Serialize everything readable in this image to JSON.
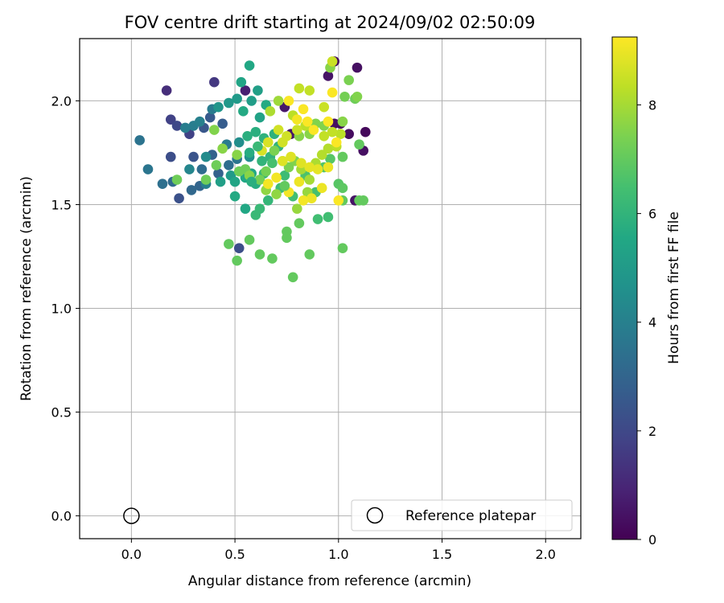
{
  "chart_data": {
    "type": "scatter",
    "title": "FOV centre drift starting at 2024/09/02 02:50:09",
    "xlabel": "Angular distance from reference (arcmin)",
    "ylabel": "Rotation from reference (arcmin)",
    "colorbar_label": "Hours from first FF file",
    "xlim": [
      -0.25,
      2.17
    ],
    "ylim": [
      -0.11,
      2.3
    ],
    "clim": [
      0,
      9.25
    ],
    "xticks": [
      0.0,
      0.5,
      1.0,
      1.5,
      2.0
    ],
    "yticks": [
      0.0,
      0.5,
      1.0,
      1.5,
      2.0
    ],
    "colorbar_ticks": [
      0,
      2,
      4,
      6,
      8
    ],
    "grid": true,
    "colormap": "viridis",
    "legend": {
      "position": "lower-right",
      "entries": [
        {
          "label": "Reference platepar",
          "marker": "open-circle"
        }
      ]
    },
    "reference_point": {
      "x": 0.0,
      "y": 0.0
    },
    "points": [
      [
        0.98,
        2.19,
        0.3
      ],
      [
        1.09,
        2.16,
        0.4
      ],
      [
        0.95,
        2.12,
        0.5
      ],
      [
        1.01,
        1.89,
        0.2
      ],
      [
        1.05,
        1.84,
        0.3
      ],
      [
        1.13,
        1.85,
        0.2
      ],
      [
        1.12,
        1.76,
        0.4
      ],
      [
        1.08,
        1.52,
        0.5
      ],
      [
        0.74,
        1.97,
        0.6
      ],
      [
        0.55,
        2.05,
        0.8
      ],
      [
        0.77,
        1.84,
        0.5
      ],
      [
        0.98,
        1.89,
        0.4
      ],
      [
        0.17,
        2.05,
        1.2
      ],
      [
        0.4,
        2.09,
        1.5
      ],
      [
        0.19,
        1.91,
        1.8
      ],
      [
        0.22,
        1.88,
        2.0
      ],
      [
        0.28,
        1.84,
        1.8
      ],
      [
        0.19,
        1.73,
        2.2
      ],
      [
        0.3,
        1.73,
        2.4
      ],
      [
        0.23,
        1.53,
        2.3
      ],
      [
        0.52,
        1.29,
        2.2
      ],
      [
        0.35,
        1.87,
        2.5
      ],
      [
        0.38,
        1.92,
        2.6
      ],
      [
        0.44,
        1.89,
        2.7
      ],
      [
        0.39,
        1.74,
        2.9
      ],
      [
        0.42,
        1.65,
        2.9
      ],
      [
        0.33,
        1.59,
        3.0
      ],
      [
        0.29,
        1.57,
        3.1
      ],
      [
        0.04,
        1.81,
        3.5
      ],
      [
        0.08,
        1.67,
        3.6
      ],
      [
        0.15,
        1.6,
        3.4
      ],
      [
        0.2,
        1.61,
        3.2
      ],
      [
        0.34,
        1.67,
        3.3
      ],
      [
        0.47,
        1.69,
        3.3
      ],
      [
        0.51,
        1.72,
        3.6
      ],
      [
        0.46,
        1.79,
        3.8
      ],
      [
        0.39,
        1.96,
        3.8
      ],
      [
        0.3,
        1.88,
        3.9
      ],
      [
        0.26,
        1.87,
        3.9
      ],
      [
        0.33,
        1.9,
        4.0
      ],
      [
        0.36,
        1.6,
        4.0
      ],
      [
        0.28,
        1.67,
        4.2
      ],
      [
        0.36,
        1.73,
        4.4
      ],
      [
        0.52,
        1.8,
        4.5
      ],
      [
        0.57,
        1.73,
        4.6
      ],
      [
        0.42,
        1.97,
        4.8
      ],
      [
        0.47,
        1.99,
        4.9
      ],
      [
        0.51,
        2.01,
        5.0
      ],
      [
        0.58,
        2.0,
        5.1
      ],
      [
        0.62,
        1.92,
        5.3
      ],
      [
        0.61,
        2.05,
        5.2
      ],
      [
        0.53,
        2.09,
        5.4
      ],
      [
        0.57,
        2.17,
        5.5
      ],
      [
        0.54,
        1.95,
        5.6
      ],
      [
        0.65,
        1.98,
        5.6
      ],
      [
        0.48,
        1.64,
        5.0
      ],
      [
        0.43,
        1.61,
        5.2
      ],
      [
        0.5,
        1.61,
        5.4
      ],
      [
        0.55,
        1.63,
        5.5
      ],
      [
        0.58,
        1.65,
        5.5
      ],
      [
        0.5,
        1.54,
        5.6
      ],
      [
        0.55,
        1.48,
        5.5
      ],
      [
        0.6,
        1.6,
        5.7
      ],
      [
        0.57,
        1.75,
        5.7
      ],
      [
        0.56,
        1.83,
        5.8
      ],
      [
        0.6,
        1.85,
        5.8
      ],
      [
        0.64,
        1.82,
        5.9
      ],
      [
        0.69,
        1.84,
        5.9
      ],
      [
        0.71,
        1.78,
        6.0
      ],
      [
        0.67,
        1.73,
        6.0
      ],
      [
        0.64,
        1.65,
        6.1
      ],
      [
        0.66,
        1.52,
        6.1
      ],
      [
        0.62,
        1.48,
        6.2
      ],
      [
        0.6,
        1.45,
        6.2
      ],
      [
        0.72,
        1.58,
        6.3
      ],
      [
        0.74,
        1.64,
        6.3
      ],
      [
        0.78,
        1.54,
        6.4
      ],
      [
        0.9,
        1.43,
        6.4
      ],
      [
        0.95,
        1.44,
        6.4
      ],
      [
        0.89,
        1.56,
        6.5
      ],
      [
        0.84,
        1.64,
        6.6
      ],
      [
        0.93,
        1.68,
        6.7
      ],
      [
        0.96,
        1.72,
        6.8
      ],
      [
        1.0,
        1.6,
        6.8
      ],
      [
        1.02,
        1.58,
        6.9
      ],
      [
        0.86,
        1.26,
        7.0
      ],
      [
        0.81,
        1.41,
        7.0
      ],
      [
        0.75,
        1.37,
        7.0
      ],
      [
        0.75,
        1.34,
        7.0
      ],
      [
        0.78,
        1.15,
        7.0
      ],
      [
        0.68,
        1.24,
        7.0
      ],
      [
        0.62,
        1.26,
        7.0
      ],
      [
        0.57,
        1.33,
        7.0
      ],
      [
        0.47,
        1.31,
        7.0
      ],
      [
        0.51,
        1.23,
        7.0
      ],
      [
        1.02,
        1.29,
        7.0
      ],
      [
        1.02,
        1.52,
        7.0
      ],
      [
        1.1,
        1.52,
        7.0
      ],
      [
        1.12,
        1.52,
        7.0
      ],
      [
        1.1,
        1.79,
        7.0
      ],
      [
        1.02,
        1.73,
        7.0
      ],
      [
        1.08,
        2.01,
        7.2
      ],
      [
        1.03,
        2.02,
        7.3
      ],
      [
        1.05,
        2.1,
        7.4
      ],
      [
        1.09,
        2.02,
        7.5
      ],
      [
        0.96,
        2.16,
        7.6
      ],
      [
        1.02,
        1.9,
        7.6
      ],
      [
        0.93,
        1.88,
        7.5
      ],
      [
        0.89,
        1.89,
        7.5
      ],
      [
        0.86,
        1.84,
        7.6
      ],
      [
        0.81,
        1.83,
        7.6
      ],
      [
        0.79,
        1.71,
        7.5
      ],
      [
        0.76,
        1.68,
        7.4
      ],
      [
        0.73,
        1.71,
        7.4
      ],
      [
        0.69,
        1.76,
        7.4
      ],
      [
        0.65,
        1.66,
        7.3
      ],
      [
        0.62,
        1.62,
        7.3
      ],
      [
        0.55,
        1.67,
        7.2
      ],
      [
        0.52,
        1.66,
        7.2
      ],
      [
        0.41,
        1.69,
        7.2
      ],
      [
        0.36,
        1.62,
        7.2
      ],
      [
        0.22,
        1.62,
        7.2
      ],
      [
        0.4,
        1.86,
        7.5
      ],
      [
        0.44,
        1.77,
        7.6
      ],
      [
        0.51,
        1.74,
        7.6
      ],
      [
        0.57,
        1.64,
        7.6
      ],
      [
        0.65,
        1.57,
        7.7
      ],
      [
        0.7,
        1.55,
        7.7
      ],
      [
        0.8,
        1.48,
        7.8
      ],
      [
        0.85,
        1.56,
        7.8
      ],
      [
        0.86,
        1.62,
        8.0
      ],
      [
        0.82,
        1.67,
        8.0
      ],
      [
        0.89,
        1.7,
        8.1
      ],
      [
        0.92,
        1.74,
        8.2
      ],
      [
        0.95,
        1.77,
        8.2
      ],
      [
        0.99,
        1.78,
        8.3
      ],
      [
        1.01,
        1.84,
        8.3
      ],
      [
        0.97,
        1.85,
        8.4
      ],
      [
        0.93,
        1.83,
        8.4
      ],
      [
        0.84,
        1.88,
        8.3
      ],
      [
        0.78,
        1.93,
        8.3
      ],
      [
        0.81,
        2.06,
        8.4
      ],
      [
        0.86,
        2.05,
        8.4
      ],
      [
        0.93,
        1.97,
        8.5
      ],
      [
        0.97,
        2.19,
        8.5
      ],
      [
        0.8,
        1.86,
        8.5
      ],
      [
        0.75,
        1.83,
        8.6
      ],
      [
        0.71,
        1.86,
        8.6
      ],
      [
        0.66,
        1.8,
        8.7
      ],
      [
        0.63,
        1.76,
        8.7
      ],
      [
        0.73,
        1.71,
        8.8
      ],
      [
        0.77,
        1.73,
        8.8
      ],
      [
        0.82,
        1.7,
        8.8
      ],
      [
        0.86,
        1.68,
        8.9
      ],
      [
        0.9,
        1.67,
        8.9
      ],
      [
        0.95,
        1.68,
        9.0
      ],
      [
        0.92,
        1.58,
        9.0
      ],
      [
        0.87,
        1.53,
        9.0
      ],
      [
        0.83,
        1.52,
        9.1
      ],
      [
        0.76,
        1.56,
        9.1
      ],
      [
        0.7,
        1.63,
        9.1
      ],
      [
        0.66,
        1.6,
        9.1
      ],
      [
        0.8,
        1.91,
        9.1
      ],
      [
        0.85,
        1.9,
        9.2
      ],
      [
        0.88,
        1.86,
        9.2
      ],
      [
        0.95,
        1.9,
        9.2
      ],
      [
        0.97,
        2.04,
        9.2
      ],
      [
        0.76,
        2.0,
        9.2
      ],
      [
        0.83,
        1.96,
        9.2
      ],
      [
        0.99,
        1.8,
        9.2
      ],
      [
        1.0,
        1.52,
        9.2
      ],
      [
        0.81,
        1.61,
        9.0
      ],
      [
        0.73,
        1.8,
        8.6
      ],
      [
        0.67,
        1.95,
        8.1
      ],
      [
        0.71,
        2.0,
        7.9
      ],
      [
        0.74,
        1.59,
        7.0
      ],
      [
        0.68,
        1.7,
        6.5
      ],
      [
        0.61,
        1.78,
        6.2
      ],
      [
        0.63,
        1.71,
        6.0
      ],
      [
        0.58,
        1.61,
        5.8
      ]
    ]
  }
}
